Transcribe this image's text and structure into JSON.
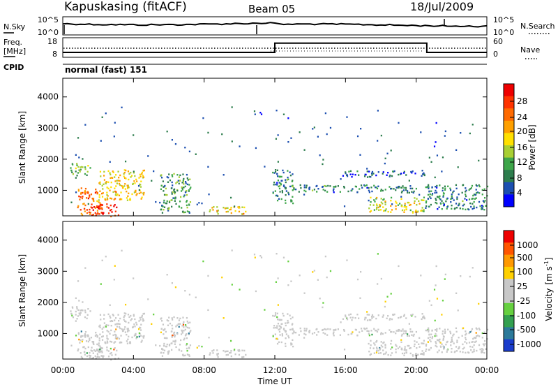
{
  "header": {
    "station": "Kapuskasing (fitACF)",
    "beam": "Beam 05",
    "date": "18/Jul/2009"
  },
  "panels": {
    "nsky": {
      "label": "N.Sky",
      "right_label": "N.Search",
      "ticks_left": [
        "10^5",
        "10^0"
      ],
      "ticks_right": [
        "10^5",
        "10^0"
      ]
    },
    "freq": {
      "label_line1": "Freq.",
      "label_line2": "[MHz]",
      "right_label": "Nave",
      "ticks_left": [
        "18",
        "8"
      ],
      "ticks_right": [
        "60",
        "0"
      ]
    },
    "cpid": {
      "label": "CPID",
      "value": "normal (fast) 151"
    }
  },
  "axes": {
    "ylabel": "Slant Range [km]",
    "xlabel": "Time UT",
    "yticks": [
      "4000",
      "3000",
      "2000",
      "1000"
    ],
    "xticks": [
      "00:00",
      "04:00",
      "08:00",
      "12:00",
      "16:00",
      "20:00",
      "00:00"
    ]
  },
  "colorbars": {
    "power": {
      "label": "Power [dB]",
      "ticks": [
        "28",
        "24",
        "20",
        "16",
        "12",
        "8",
        "4"
      ],
      "colors": [
        "#0000ff",
        "#1c4fb0",
        "#2d7d4d",
        "#3ea64a",
        "#a8cf33",
        "#ffe000",
        "#ffa000",
        "#ff6a00",
        "#ff3300",
        "#ee0000"
      ]
    },
    "velocity": {
      "label_main": "Velocity",
      "label_unit": "[m s",
      "label_exp": "-1",
      "label_close": "]",
      "ticks": [
        "1000",
        "500",
        "100",
        "25",
        "-25",
        "-100",
        "-500",
        "-1000"
      ],
      "colors": [
        "#1a3ccc",
        "#2c7a9a",
        "#33a050",
        "#66d040",
        "#c8c8c8",
        "#c8c8c8",
        "#ffd000",
        "#ff9900",
        "#ff5500",
        "#ee0000"
      ]
    }
  },
  "chart_data": {
    "type": "heatmap",
    "title": "Kapuskasing (fitACF)",
    "x": {
      "label": "Time UT",
      "range_hours": [
        0,
        24
      ]
    },
    "y": {
      "label": "Slant Range [km]",
      "range": [
        180,
        4600
      ]
    },
    "freq_series": {
      "name": "Freq.",
      "segments": [
        {
          "start_h": 0,
          "end_h": 12,
          "value_mhz": 10.5
        },
        {
          "start_h": 12,
          "end_h": 20.6,
          "value_mhz": 15.2
        },
        {
          "start_h": 20.6,
          "end_h": 24,
          "value_mhz": 10.5
        }
      ]
    },
    "scatter_regions": [
      {
        "t0": 0.4,
        "t1": 1.6,
        "r0": 1500,
        "r1": 1900,
        "power": 12,
        "velocity": 0
      },
      {
        "t0": 0.8,
        "t1": 2.2,
        "r0": 200,
        "r1": 1100,
        "power": 24,
        "velocity": 0
      },
      {
        "t0": 2.0,
        "t1": 4.6,
        "r0": 700,
        "r1": 1700,
        "power": 18,
        "velocity": 0
      },
      {
        "t0": 1.5,
        "t1": 3.2,
        "r0": 180,
        "r1": 600,
        "power": 28,
        "velocity": -25
      },
      {
        "t0": 5.5,
        "t1": 7.2,
        "r0": 300,
        "r1": 1600,
        "power": 10,
        "velocity": 0
      },
      {
        "t0": 8.2,
        "t1": 10.6,
        "r0": 250,
        "r1": 500,
        "power": 18,
        "velocity": 25
      },
      {
        "t0": 11.8,
        "t1": 13.0,
        "r0": 600,
        "r1": 1700,
        "power": 8,
        "velocity": 0
      },
      {
        "t0": 13.0,
        "t1": 20.0,
        "r0": 950,
        "r1": 1200,
        "power": 8,
        "velocity": 0
      },
      {
        "t0": 15.8,
        "t1": 20.6,
        "r0": 1450,
        "r1": 1650,
        "power": 6,
        "velocity": 0
      },
      {
        "t0": 17.2,
        "t1": 20.4,
        "r0": 300,
        "r1": 800,
        "power": 16,
        "velocity": -25
      },
      {
        "t0": 20.4,
        "t1": 24.0,
        "r0": 400,
        "r1": 1200,
        "power": 8,
        "velocity": 0
      }
    ]
  }
}
